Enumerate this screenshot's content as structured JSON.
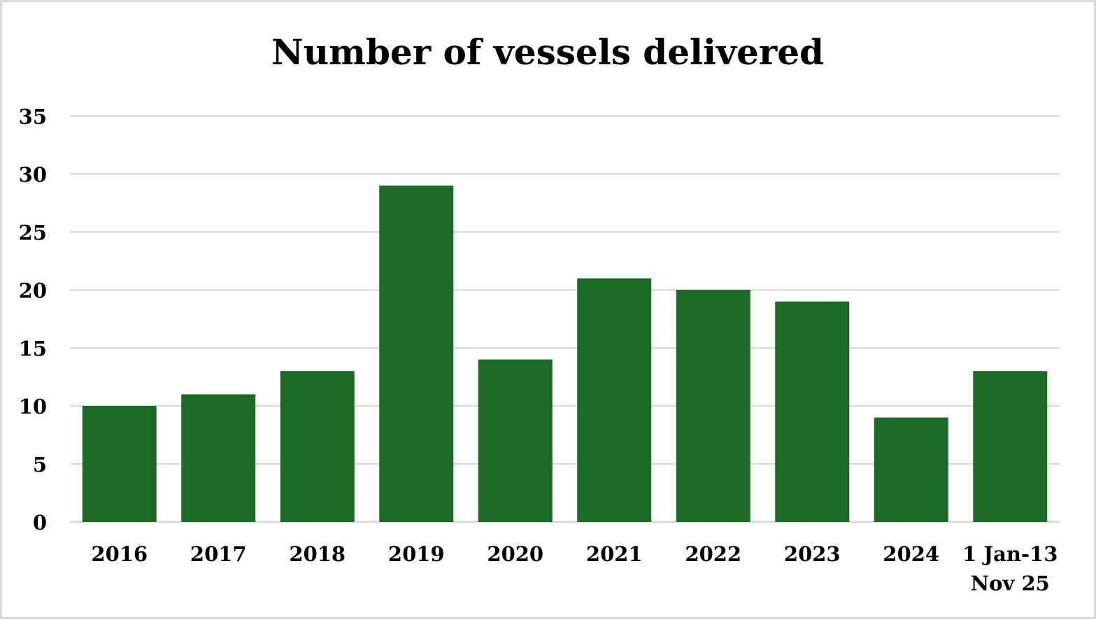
{
  "chart_data": {
    "type": "bar",
    "title": "Number of vessels delivered",
    "xlabel": "",
    "ylabel": "",
    "categories": [
      "2016",
      "2017",
      "2018",
      "2019",
      "2020",
      "2021",
      "2022",
      "2023",
      "2024",
      "1 Jan-13 Nov 25"
    ],
    "category_lines": [
      [
        "2016"
      ],
      [
        "2017"
      ],
      [
        "2018"
      ],
      [
        "2019"
      ],
      [
        "2020"
      ],
      [
        "2021"
      ],
      [
        "2022"
      ],
      [
        "2023"
      ],
      [
        "2024"
      ],
      [
        "1 Jan-13",
        "Nov 25"
      ]
    ],
    "values": [
      10,
      11,
      13,
      29,
      14,
      21,
      20,
      19,
      9,
      13
    ],
    "ylim": [
      0,
      35
    ],
    "yticks": [
      "0",
      "5",
      "10",
      "15",
      "20",
      "25",
      "30",
      "35"
    ],
    "grid": true,
    "legend": "none",
    "colors": {
      "bar": "#1b6b27",
      "grid": "#d9d9d9",
      "border": "#d9d9d9"
    }
  }
}
